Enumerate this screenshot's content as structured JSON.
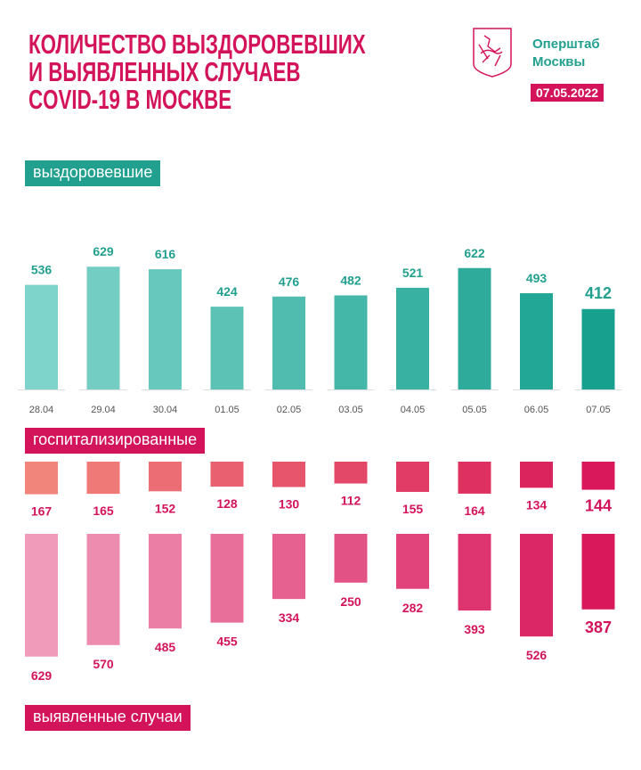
{
  "header": {
    "title_lines": [
      "КОЛИЧЕСТВО ВЫЗДОРОВЕВШИХ",
      "И ВЫЯВЛЕННЫХ СЛУЧАЕВ",
      "COVID-19 В МОСКВЕ"
    ],
    "org_line1": "Оперштаб",
    "org_line2": "Москвы",
    "date": "07.05.2022"
  },
  "colors": {
    "title": "#d4145a",
    "recovered_light": "#7ed3ca",
    "recovered_dark": "#17a08e",
    "hosp_light": "#f2857b",
    "hosp_dark": "#d8185a",
    "detected_light": "#f19bbb",
    "detected_dark": "#d8185a"
  },
  "chart_data": {
    "type": "bar",
    "categories": [
      "28.04",
      "29.04",
      "30.04",
      "01.05",
      "02.05",
      "03.05",
      "04.05",
      "05.05",
      "06.05",
      "07.05"
    ],
    "series": [
      {
        "name": "выздоровевшие",
        "values": [
          536,
          629,
          616,
          424,
          476,
          482,
          521,
          622,
          493,
          412
        ]
      },
      {
        "name": "госпитализированные",
        "values": [
          167,
          165,
          152,
          128,
          130,
          112,
          155,
          164,
          134,
          144
        ]
      },
      {
        "name": "выявленные случаи",
        "values": [
          629,
          570,
          485,
          455,
          334,
          250,
          282,
          393,
          526,
          387
        ]
      }
    ]
  }
}
